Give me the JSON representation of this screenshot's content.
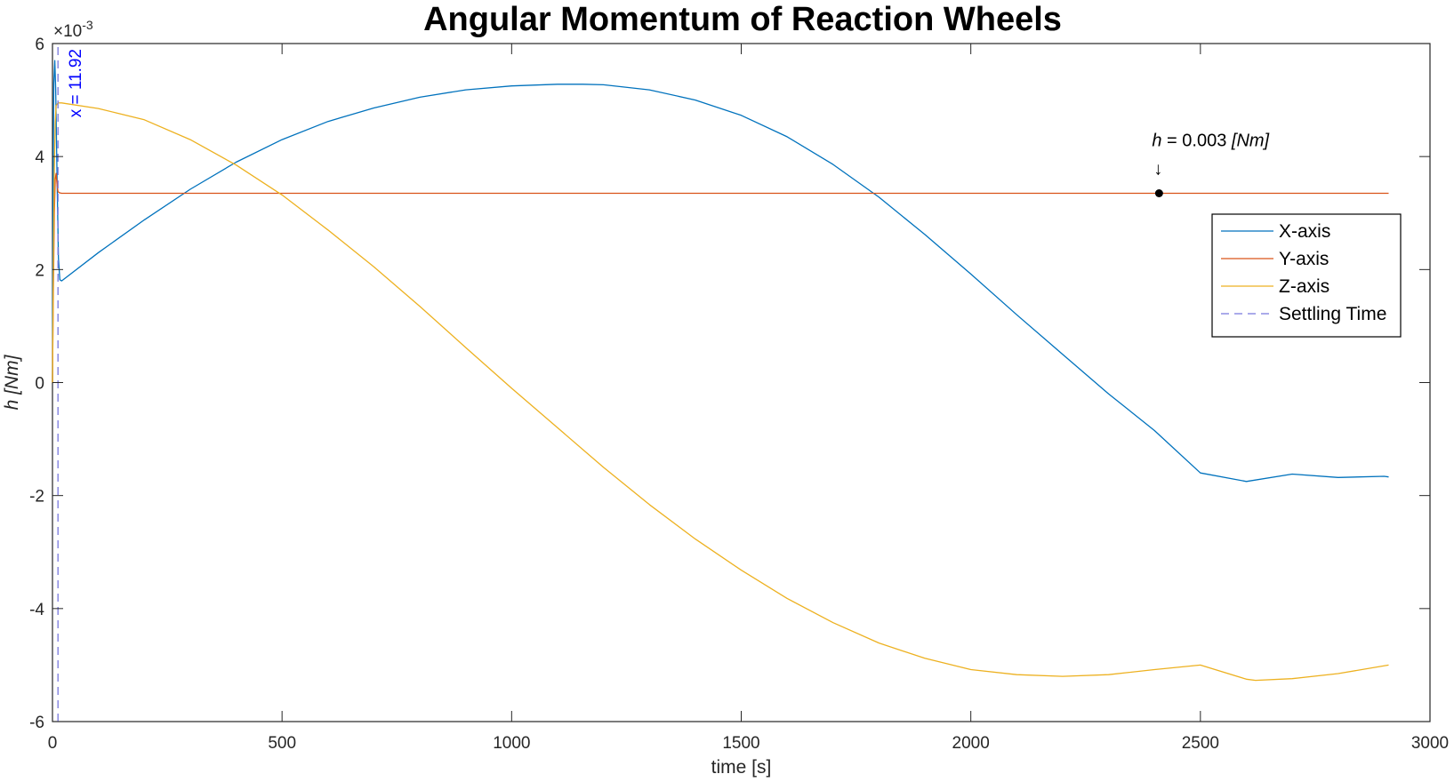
{
  "chart_data": {
    "type": "line",
    "title": "Angular Momentum of Reaction Wheels",
    "xlabel": "time [s]",
    "ylabel_symbol": "h",
    "ylabel_unit": "[Nm]",
    "y_exponent": "×10",
    "y_exponent_power": "-3",
    "xlim": [
      0,
      3000
    ],
    "ylim": [
      -6,
      6
    ],
    "xticks": [
      0,
      500,
      1000,
      1500,
      2000,
      2500,
      3000
    ],
    "yticks": [
      -6,
      -4,
      -2,
      0,
      2,
      4,
      6
    ],
    "xtick_labels": [
      "0",
      "500",
      "1000",
      "1500",
      "2000",
      "2500",
      "3000"
    ],
    "ytick_labels": [
      "-6",
      "-4",
      "-2",
      "0",
      "2",
      "4",
      "6"
    ],
    "legend_position": "upper-right",
    "series": [
      {
        "name": "X-axis",
        "color": "#0072BD",
        "x": [
          0,
          1.5,
          3,
          5,
          7,
          10,
          13,
          16,
          20,
          100,
          200,
          300,
          400,
          500,
          600,
          700,
          800,
          900,
          1000,
          1100,
          1155,
          1200,
          1300,
          1400,
          1500,
          1600,
          1700,
          1800,
          1900,
          2000,
          2100,
          2200,
          2300,
          2400,
          2500,
          2600,
          2700,
          2800,
          2900,
          2910
        ],
        "y": [
          0,
          3.8,
          5.3,
          5.7,
          5.2,
          3.6,
          2.2,
          1.82,
          1.8,
          2.3,
          2.88,
          3.42,
          3.9,
          4.3,
          4.62,
          4.86,
          5.05,
          5.18,
          5.25,
          5.28,
          5.28,
          5.27,
          5.18,
          5.0,
          4.73,
          4.35,
          3.86,
          3.28,
          2.62,
          1.92,
          1.2,
          0.5,
          -0.2,
          -0.85,
          -1.6,
          -1.75,
          -1.62,
          -1.68,
          -1.66,
          -1.67
        ]
      },
      {
        "name": "Y-axis",
        "color": "#D95319",
        "x": [
          0,
          2,
          4,
          6,
          8,
          10,
          12,
          15,
          20,
          500,
          1000,
          1500,
          2000,
          2500,
          2910
        ],
        "y": [
          0,
          1.6,
          3.0,
          3.6,
          3.7,
          3.5,
          3.38,
          3.36,
          3.35,
          3.35,
          3.35,
          3.35,
          3.35,
          3.35,
          3.35
        ]
      },
      {
        "name": "Z-axis",
        "color": "#EDB120",
        "x": [
          0,
          2,
          4,
          6,
          8,
          12,
          20,
          100,
          200,
          300,
          400,
          500,
          600,
          700,
          800,
          900,
          1000,
          1100,
          1200,
          1300,
          1400,
          1500,
          1600,
          1700,
          1800,
          1900,
          2000,
          2100,
          2200,
          2300,
          2400,
          2500,
          2600,
          2620,
          2700,
          2800,
          2910
        ],
        "y": [
          0,
          2.0,
          3.8,
          4.6,
          4.9,
          4.95,
          4.95,
          4.85,
          4.65,
          4.3,
          3.85,
          3.32,
          2.7,
          2.05,
          1.35,
          0.62,
          -0.1,
          -0.8,
          -1.5,
          -2.16,
          -2.77,
          -3.32,
          -3.82,
          -4.25,
          -4.61,
          -4.88,
          -5.08,
          -5.17,
          -5.2,
          -5.17,
          -5.08,
          -5.0,
          -5.25,
          -5.27,
          -5.24,
          -5.15,
          -5.0
        ]
      },
      {
        "name": "Settling Time",
        "color": "#7777dd",
        "dashed": true,
        "x": [
          11.92,
          11.92
        ],
        "y": [
          -6,
          6
        ]
      }
    ],
    "annotations": {
      "settling_label": "x = 11.92",
      "settling_x": 11.92,
      "point_label_symbol": "h",
      "point_label_value": " = 0.003 ",
      "point_label_unit": "[Nm]",
      "point_arrow": "↓",
      "point_x": 2410,
      "point_y": 3.35
    }
  }
}
